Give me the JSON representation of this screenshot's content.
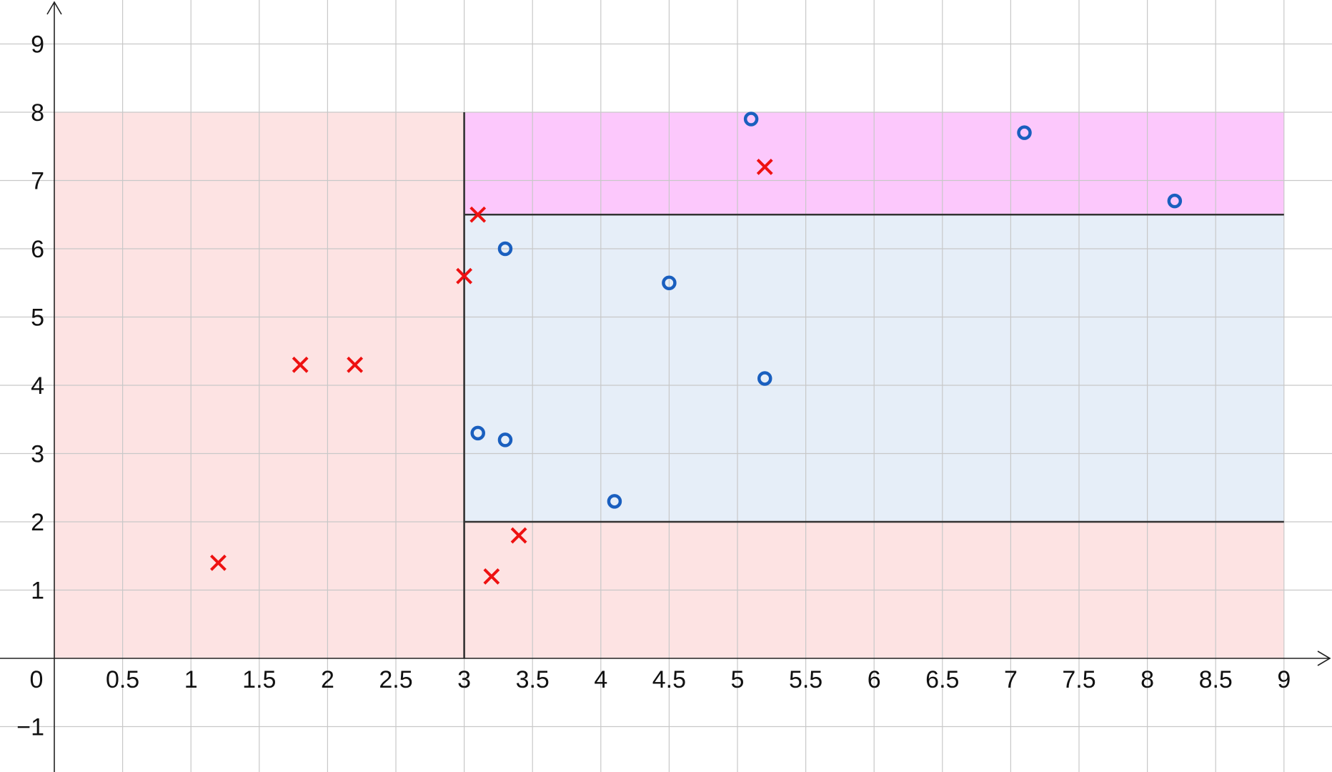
{
  "chart_data": {
    "type": "scatter",
    "title": "",
    "xlabel": "",
    "ylabel": "",
    "xlim": [
      -0.1,
      9.4
    ],
    "ylim": [
      -1.65,
      9.65
    ],
    "grid": true,
    "x_ticks": [
      {
        "value": 0,
        "label": "0"
      },
      {
        "value": 0.5,
        "label": "0.5"
      },
      {
        "value": 1,
        "label": "1"
      },
      {
        "value": 1.5,
        "label": "1.5"
      },
      {
        "value": 2,
        "label": "2"
      },
      {
        "value": 2.5,
        "label": "2.5"
      },
      {
        "value": 3,
        "label": "3"
      },
      {
        "value": 3.5,
        "label": "3.5"
      },
      {
        "value": 4,
        "label": "4"
      },
      {
        "value": 4.5,
        "label": "4.5"
      },
      {
        "value": 5,
        "label": "5"
      },
      {
        "value": 5.5,
        "label": "5.5"
      },
      {
        "value": 6,
        "label": "6"
      },
      {
        "value": 6.5,
        "label": "6.5"
      },
      {
        "value": 7,
        "label": "7"
      },
      {
        "value": 7.5,
        "label": "7.5"
      },
      {
        "value": 8,
        "label": "8"
      },
      {
        "value": 8.5,
        "label": "8.5"
      },
      {
        "value": 9,
        "label": "9"
      }
    ],
    "y_ticks": [
      {
        "value": -1,
        "label": "−1"
      },
      {
        "value": 1,
        "label": "1"
      },
      {
        "value": 2,
        "label": "2"
      },
      {
        "value": 3,
        "label": "3"
      },
      {
        "value": 4,
        "label": "4"
      },
      {
        "value": 5,
        "label": "5"
      },
      {
        "value": 6,
        "label": "6"
      },
      {
        "value": 7,
        "label": "7"
      },
      {
        "value": 8,
        "label": "8"
      },
      {
        "value": 9,
        "label": "9"
      }
    ],
    "regions": [
      {
        "x": [
          0,
          3
        ],
        "y": [
          0,
          8
        ],
        "color": "#fde3e3"
      },
      {
        "x": [
          3,
          9
        ],
        "y": [
          0,
          2
        ],
        "color": "#fde3e3"
      },
      {
        "x": [
          3,
          9
        ],
        "y": [
          2,
          6.5
        ],
        "color": "#e6eef8"
      },
      {
        "x": [
          3,
          9
        ],
        "y": [
          6.5,
          8
        ],
        "color": "#fcc8fc"
      }
    ],
    "boundaries": [
      {
        "x": [
          3,
          3
        ],
        "y": [
          0,
          8
        ]
      },
      {
        "x": [
          3,
          9
        ],
        "y": [
          2,
          2
        ]
      },
      {
        "x": [
          3,
          9
        ],
        "y": [
          6.5,
          6.5
        ]
      }
    ],
    "series": [
      {
        "marker": "x",
        "color": "#ee1111",
        "points": [
          {
            "x": 1.2,
            "y": 1.4
          },
          {
            "x": 1.8,
            "y": 4.3
          },
          {
            "x": 2.2,
            "y": 4.3
          },
          {
            "x": 3.0,
            "y": 5.6
          },
          {
            "x": 3.1,
            "y": 6.5
          },
          {
            "x": 3.2,
            "y": 1.2
          },
          {
            "x": 3.4,
            "y": 1.8
          },
          {
            "x": 5.2,
            "y": 7.2
          }
        ]
      },
      {
        "marker": "o",
        "color": "#1a5fbf",
        "points": [
          {
            "x": 3.1,
            "y": 3.3
          },
          {
            "x": 3.3,
            "y": 3.2
          },
          {
            "x": 3.3,
            "y": 6.0
          },
          {
            "x": 4.1,
            "y": 2.3
          },
          {
            "x": 4.5,
            "y": 5.5
          },
          {
            "x": 5.1,
            "y": 7.9
          },
          {
            "x": 5.2,
            "y": 4.1
          },
          {
            "x": 7.1,
            "y": 7.7
          },
          {
            "x": 8.2,
            "y": 6.7
          }
        ]
      }
    ]
  }
}
